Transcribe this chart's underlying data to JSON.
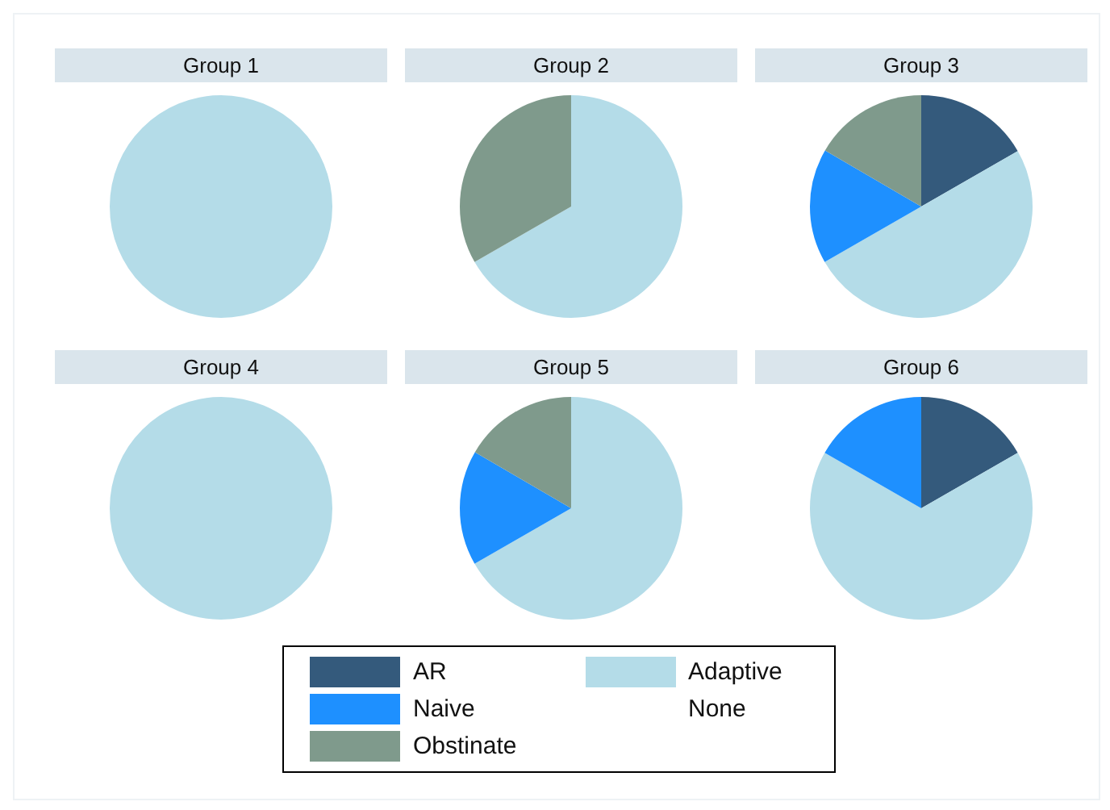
{
  "chart_data": [
    {
      "type": "pie",
      "title": "Group 1",
      "categories": [
        "AR",
        "Adaptive",
        "Naive",
        "None",
        "Obstinate"
      ],
      "values": [
        0,
        100,
        0,
        0,
        0
      ],
      "colors": [
        "#345a7c",
        "#b4dce8",
        "#1e90ff",
        "#ffffff",
        "#7f9a8c"
      ],
      "legend": "bottom"
    },
    {
      "type": "pie",
      "title": "Group 2",
      "categories": [
        null,
        null,
        null,
        null,
        null
      ],
      "values": [
        0,
        66.7,
        0,
        0,
        33.3
      ],
      "colors": [
        "#345a7c",
        "#b4dce8",
        "#1e90ff",
        "#ffffff",
        "#7f9a8c"
      ]
    },
    {
      "type": "pie",
      "title": "Group 3",
      "categories": [
        null,
        null,
        null,
        null,
        null
      ],
      "values": [
        16.7,
        50,
        16.7,
        0,
        16.6
      ],
      "colors": [
        "#345a7c",
        "#b4dce8",
        "#1e90ff",
        "#ffffff",
        "#7f9a8c"
      ]
    },
    {
      "type": "pie",
      "title": "Group 4",
      "categories": [
        null,
        null,
        null,
        null,
        null
      ],
      "values": [
        0,
        100,
        0,
        0,
        0
      ],
      "colors": [
        "#345a7c",
        "#b4dce8",
        "#1e90ff",
        "#ffffff",
        "#7f9a8c"
      ]
    },
    {
      "type": "pie",
      "title": "Group 5",
      "categories": [
        null,
        null,
        null,
        null,
        null
      ],
      "values": [
        0,
        66.7,
        16.7,
        0,
        16.6
      ],
      "colors": [
        "#345a7c",
        "#b4dce8",
        "#1e90ff",
        "#ffffff",
        "#7f9a8c"
      ]
    },
    {
      "type": "pie",
      "title": "Group 6",
      "categories": [
        null,
        null,
        null,
        null,
        null
      ],
      "values": [
        16.7,
        66.6,
        16.7,
        0,
        0
      ],
      "colors": [
        "#345a7c",
        "#b4dce8",
        "#1e90ff",
        "#ffffff",
        "#7f9a8c"
      ]
    }
  ]
}
